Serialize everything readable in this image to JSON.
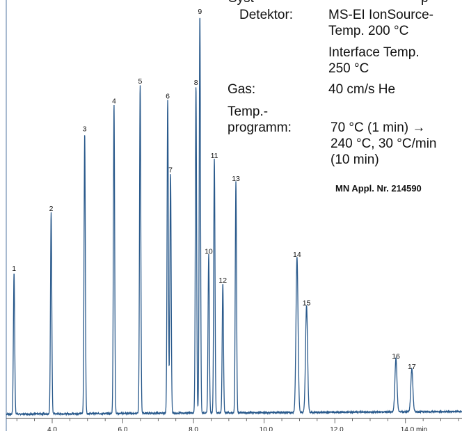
{
  "conditions": {
    "header_partial": "Syst",
    "header_partial_right": "p",
    "detector_label": "Detektor:",
    "detector_value_line1": "MS-EI IonSource-",
    "detector_value_line2": "Temp. 200 °C",
    "detector_value_line3": "Interface Temp.",
    "detector_value_line4": "250 °C",
    "gas_label": "Gas:",
    "gas_value": "40 cm/s He",
    "temp_label_line1": "Temp.-",
    "temp_label_line2": "programm:",
    "temp_value_line1": "70 °C (1 min) →",
    "temp_value_line2": "240 °C, 30 °C/min",
    "temp_value_line3": "(10 min)",
    "appl_note": "MN Appl. Nr. 214590"
  },
  "chart_data": {
    "type": "line",
    "title": "",
    "xlabel": "",
    "ylabel": "",
    "x_unit": "min",
    "xlim": [
      2.7,
      15.6
    ],
    "ylim": [
      0,
      100
    ],
    "x_ticks": [
      4.0,
      6.0,
      8.0,
      10.0,
      12.0,
      14.0
    ],
    "x_tick_labels": [
      "4.0",
      "6.0",
      "8.0",
      "10.0",
      "12.0",
      "14.0 min"
    ],
    "baseline": 0.4,
    "line_color": "#2a5a8c",
    "peaks": [
      {
        "label": "1",
        "rt": 2.92,
        "height": 35.5
      },
      {
        "label": "2",
        "rt": 3.97,
        "height": 50.5
      },
      {
        "label": "3",
        "rt": 4.92,
        "height": 70.5
      },
      {
        "label": "4",
        "rt": 5.75,
        "height": 77.5
      },
      {
        "label": "5",
        "rt": 6.49,
        "height": 82.5
      },
      {
        "label": "6",
        "rt": 7.27,
        "height": 78.8
      },
      {
        "label": "7",
        "rt": 7.35,
        "height": 60.2
      },
      {
        "label": "8",
        "rt": 8.07,
        "height": 82.2
      },
      {
        "label": "9",
        "rt": 8.18,
        "height": 100.0
      },
      {
        "label": "10",
        "rt": 8.43,
        "height": 39.8
      },
      {
        "label": "11",
        "rt": 8.59,
        "height": 63.8
      },
      {
        "label": "12",
        "rt": 8.83,
        "height": 32.5
      },
      {
        "label": "13",
        "rt": 9.2,
        "height": 58.0
      },
      {
        "label": "14",
        "rt": 10.93,
        "height": 39.0
      },
      {
        "label": "15",
        "rt": 11.2,
        "height": 26.8
      },
      {
        "label": "16",
        "rt": 13.73,
        "height": 13.5
      },
      {
        "label": "17",
        "rt": 14.18,
        "height": 10.8
      }
    ]
  }
}
